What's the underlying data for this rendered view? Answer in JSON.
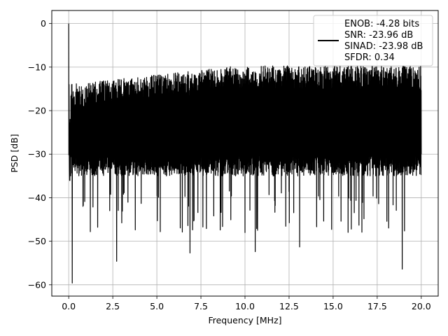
{
  "chart_data": {
    "type": "line",
    "xlabel": "Frequency [MHz]",
    "ylabel": "PSD [dB]",
    "xlim": [
      -0.96,
      20.96
    ],
    "ylim": [
      -62.6,
      3.0
    ],
    "xticks": [
      0.0,
      2.5,
      5.0,
      7.5,
      10.0,
      12.5,
      15.0,
      17.5,
      20.0
    ],
    "xtick_labels": [
      "0.0",
      "2.5",
      "5.0",
      "7.5",
      "10.0",
      "12.5",
      "15.0",
      "17.5",
      "20.0"
    ],
    "yticks": [
      0,
      -10,
      -20,
      -30,
      -40,
      -50,
      -60
    ],
    "ytick_labels": [
      "0",
      "−10",
      "−20",
      "−30",
      "−40",
      "−50",
      "−60"
    ],
    "grid": true,
    "line_color": "#000000",
    "legend_position": "top-right",
    "legend": [
      "ENOB: -4.28 bits",
      "SNR: -23.96 dB",
      "SINAD: -23.98 dB",
      "SFDR: 0.34"
    ],
    "series": [
      {
        "x_range": [
          0,
          20
        ],
        "points": [
          [
            0.0,
            0.0
          ],
          [
            0.02,
            -14.0
          ],
          [
            0.05,
            -36.0
          ],
          [
            0.08,
            -22.0
          ],
          [
            0.2,
            -59.6
          ],
          [
            2.72,
            -54.6
          ],
          [
            6.88,
            -52.7
          ],
          [
            10.0,
            -48.0
          ],
          [
            10.58,
            -52.4
          ],
          [
            13.1,
            -51.3
          ],
          [
            18.92,
            -56.4
          ],
          [
            20.0,
            -30.0
          ]
        ],
        "upper_envelope_db": [
          -14,
          -11.5,
          -10
        ],
        "noise_band_db": [
          -35,
          -15
        ],
        "typical_floor_db": -30
      }
    ]
  }
}
